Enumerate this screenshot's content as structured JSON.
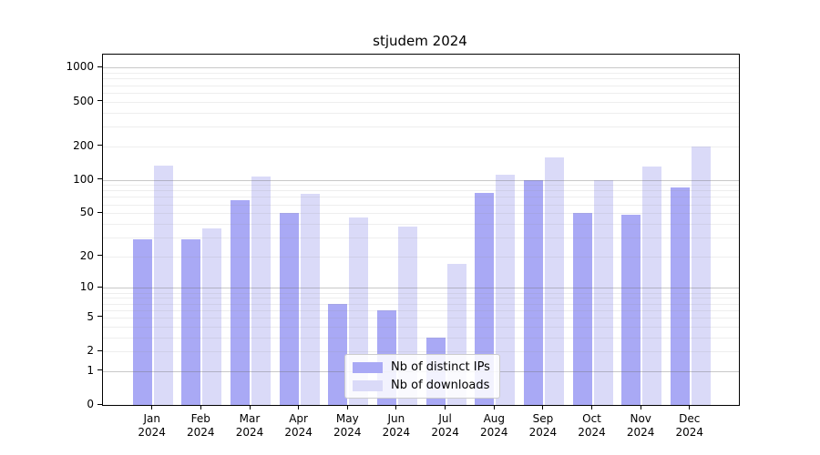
{
  "chart_data": {
    "type": "bar",
    "title": "stjudem 2024",
    "xlabel": "",
    "ylabel": "",
    "scale": "log1p",
    "grid": "on",
    "legend_position": "lower center inside plot",
    "year": "2024",
    "months": [
      "Jan",
      "Feb",
      "Mar",
      "Apr",
      "May",
      "Jun",
      "Jul",
      "Aug",
      "Sep",
      "Oct",
      "Nov",
      "Dec"
    ],
    "categories": [
      "Jan 2024",
      "Feb 2024",
      "Mar 2024",
      "Apr 2024",
      "May 2024",
      "Jun 2024",
      "Jul 2024",
      "Aug 2024",
      "Sep 2024",
      "Oct 2024",
      "Nov 2024",
      "Dec 2024"
    ],
    "y_ticks": [
      0,
      1,
      2,
      5,
      10,
      20,
      50,
      100,
      200,
      500,
      1000
    ],
    "ylim": [
      0,
      1270
    ],
    "series": [
      {
        "name": "Nb of distinct IPs",
        "color": "#a9a9f5",
        "values": [
          29,
          29,
          66,
          50,
          7,
          6,
          3,
          76,
          100,
          50,
          48,
          85
        ]
      },
      {
        "name": "Nb of downloads",
        "color": "#dadaf8",
        "values": [
          135,
          36,
          107,
          75,
          46,
          38,
          17,
          111,
          158,
          100,
          132,
          200
        ]
      }
    ],
    "colors": {
      "ips_bar": "#a9a9f5",
      "downloads_bar": "#dadaf8",
      "major_grid": "#9c9c9c",
      "minor_grid": "#e2e2e2",
      "spine": "#000000"
    }
  }
}
